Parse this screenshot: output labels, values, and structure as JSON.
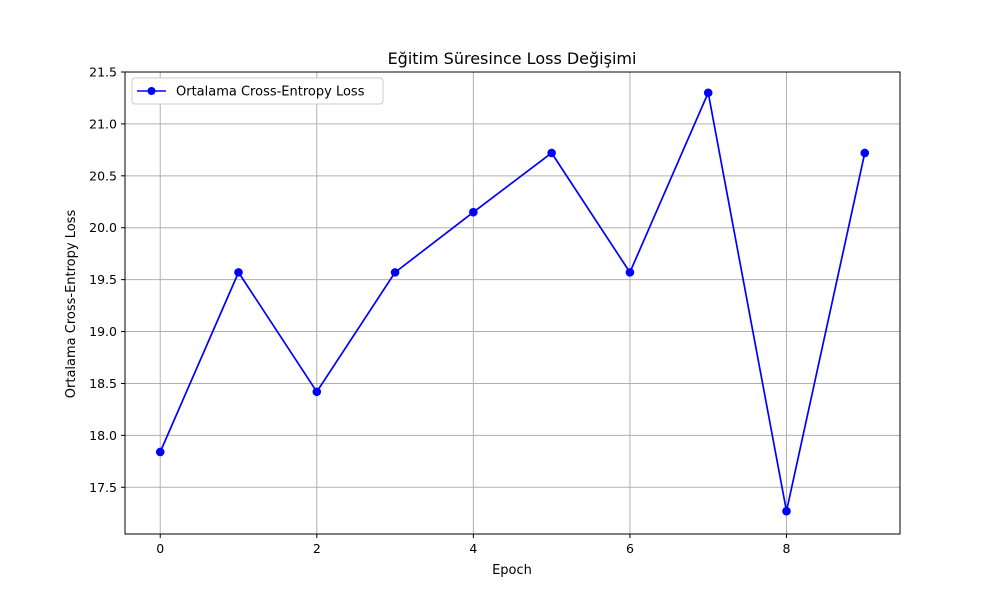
{
  "chart_data": {
    "type": "line",
    "title": "Eğitim Süresince Loss Değişimi",
    "xlabel": "Epoch",
    "ylabel": "Ortalama Cross-Entropy Loss",
    "x": [
      0,
      1,
      2,
      3,
      4,
      5,
      6,
      7,
      8,
      9
    ],
    "series": [
      {
        "name": "Ortalama Cross-Entropy Loss",
        "color": "#0000ff",
        "marker": "circle",
        "values": [
          17.84,
          19.57,
          18.42,
          19.57,
          20.15,
          20.72,
          19.57,
          21.3,
          17.27,
          20.72
        ]
      }
    ],
    "xlim": [
      -0.45,
      9.45
    ],
    "ylim": [
      17.05,
      21.5
    ],
    "xticks": [
      0,
      2,
      4,
      6,
      8
    ],
    "xtick_labels": [
      "0",
      "2",
      "4",
      "6",
      "8"
    ],
    "yticks": [
      17.5,
      18.0,
      18.5,
      19.0,
      19.5,
      20.0,
      20.5,
      21.0,
      21.5
    ],
    "ytick_labels": [
      "17.5",
      "18.0",
      "18.5",
      "19.0",
      "19.5",
      "20.0",
      "20.5",
      "21.0",
      "21.5"
    ],
    "grid": true,
    "legend_position": "upper-left"
  }
}
